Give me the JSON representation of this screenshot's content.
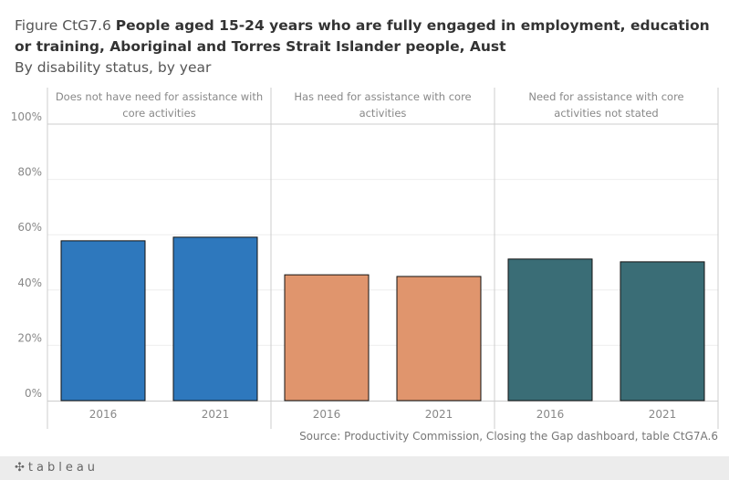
{
  "header": {
    "figure_prefix": "Figure CtG7.6",
    "title": "People aged 15-24 years who are fully engaged in employment, education or training, Aboriginal and Torres Strait Islander people, Aust",
    "subtitle": "By disability status, by year"
  },
  "chart_data": {
    "type": "bar",
    "panels": [
      {
        "label": "Does not have need for assistance with core activities",
        "color": "#2e78bd",
        "categories": [
          "2016",
          "2021"
        ],
        "values": [
          57.8,
          59.1
        ]
      },
      {
        "label": "Has need for assistance with core activities",
        "color": "#e0956d",
        "categories": [
          "2016",
          "2021"
        ],
        "values": [
          45.5,
          44.9
        ]
      },
      {
        "label": "Need for assistance with core activities not stated",
        "color": "#3a6d76",
        "categories": [
          "2016",
          "2021"
        ],
        "values": [
          51.2,
          50.2
        ]
      }
    ],
    "ylim": [
      0,
      100
    ],
    "yticks": [
      "0%",
      "20%",
      "40%",
      "60%",
      "80%",
      "100%"
    ],
    "grid": true,
    "ylabel": "",
    "xlabel": ""
  },
  "footer": {
    "source": "Source: Productivity Commission, Closing the Gap dashboard, table CtG7A.6",
    "logo": "tableau"
  }
}
